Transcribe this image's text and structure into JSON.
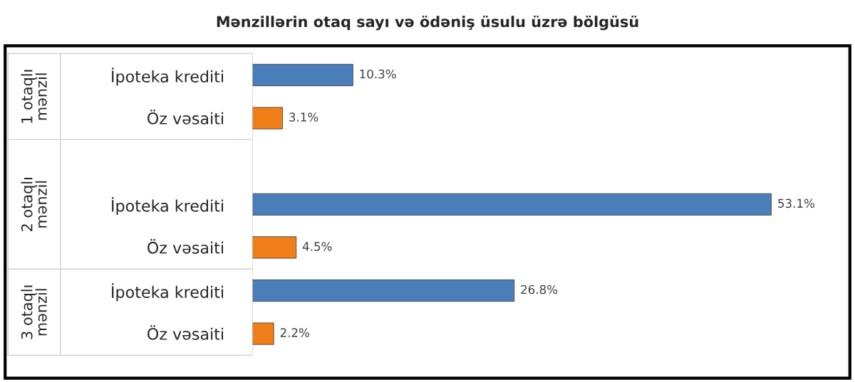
{
  "chart_data": {
    "type": "bar",
    "orientation": "horizontal",
    "title": "Mənzillərin otaq sayı və ödəniş üsulu üzrə bölgüsü",
    "categories": [
      "İpoteka krediti",
      "Öz vəsaiti",
      null,
      "İpoteka krediti",
      "Öz vəsaiti",
      "İpoteka krediti",
      "Öz vəsaiti"
    ],
    "values": [
      10.3,
      3.1,
      null,
      53.1,
      4.5,
      26.8,
      2.2
    ],
    "colors": [
      "#4a7ebb",
      "#f07f1a",
      null,
      "#4a7ebb",
      "#f07f1a",
      "#4a7ebb",
      "#f07f1a"
    ],
    "value_labels": [
      "10.3%",
      "3.1%",
      null,
      "53.1%",
      "4.5%",
      "26.8%",
      "2.2%"
    ],
    "annotations": [
      "1 otaqlı\nmənzil",
      "2 otaqlı\nmənzil",
      "3 otaqlı\nmənzil"
    ],
    "tick_labels": "y",
    "grid": false,
    "legend": false
  }
}
